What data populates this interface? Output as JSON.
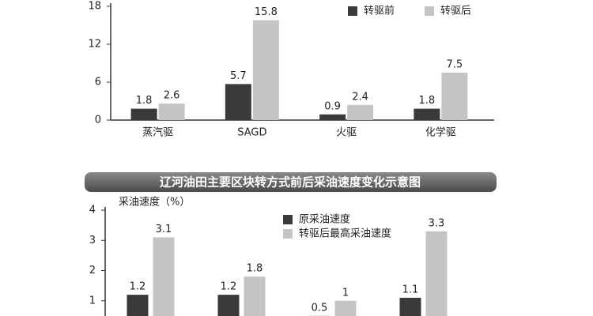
{
  "chart_data": [
    {
      "type": "bar",
      "categories": [
        "蒸汽驱",
        "SAGD",
        "火驱",
        "化学驱"
      ],
      "series": [
        {
          "name": "转驱前",
          "color": "#3a3a3a",
          "values": [
            1.8,
            5.7,
            0.9,
            1.8
          ]
        },
        {
          "name": "转驱后",
          "color": "#c4c4c4",
          "values": [
            2.6,
            15.8,
            2.4,
            7.5
          ]
        }
      ],
      "ylim": [
        0,
        18
      ],
      "yticks": [
        0,
        6,
        12,
        18
      ],
      "grid": false,
      "legend": "upper right"
    },
    {
      "type": "bar",
      "title": "辽河油田主要区块转方式前后采油速度变化示意图",
      "ylabel": "采油速度（%）",
      "categories": [
        null,
        null,
        null,
        null
      ],
      "series": [
        {
          "name": "原采油速度",
          "color": "#3a3a3a",
          "values": [
            1.2,
            1.2,
            0.5,
            1.1
          ]
        },
        {
          "name": "转驱后最高采油速度",
          "color": "#c4c4c4",
          "values": [
            3.1,
            1.8,
            1,
            3.3
          ]
        }
      ],
      "ylim": [
        0,
        4
      ],
      "yticks": [
        1,
        2,
        3,
        4
      ],
      "grid": false,
      "legend": "upper center"
    }
  ]
}
